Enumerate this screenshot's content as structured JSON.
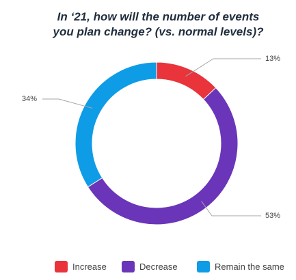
{
  "chart_data": {
    "type": "pie",
    "variant": "donut",
    "title_lines": [
      "In ‘21, how will the number of events",
      "you plan change? (vs. normal levels)?"
    ],
    "categories": [
      "Increase",
      "Decrease",
      "Remain the same"
    ],
    "values": [
      13,
      53,
      34
    ],
    "unit": "%",
    "data_labels": [
      "13%",
      "53%",
      "34%"
    ],
    "colors": [
      "#e8343a",
      "#6a35b8",
      "#0f9ce6"
    ],
    "legend_position": "bottom"
  }
}
